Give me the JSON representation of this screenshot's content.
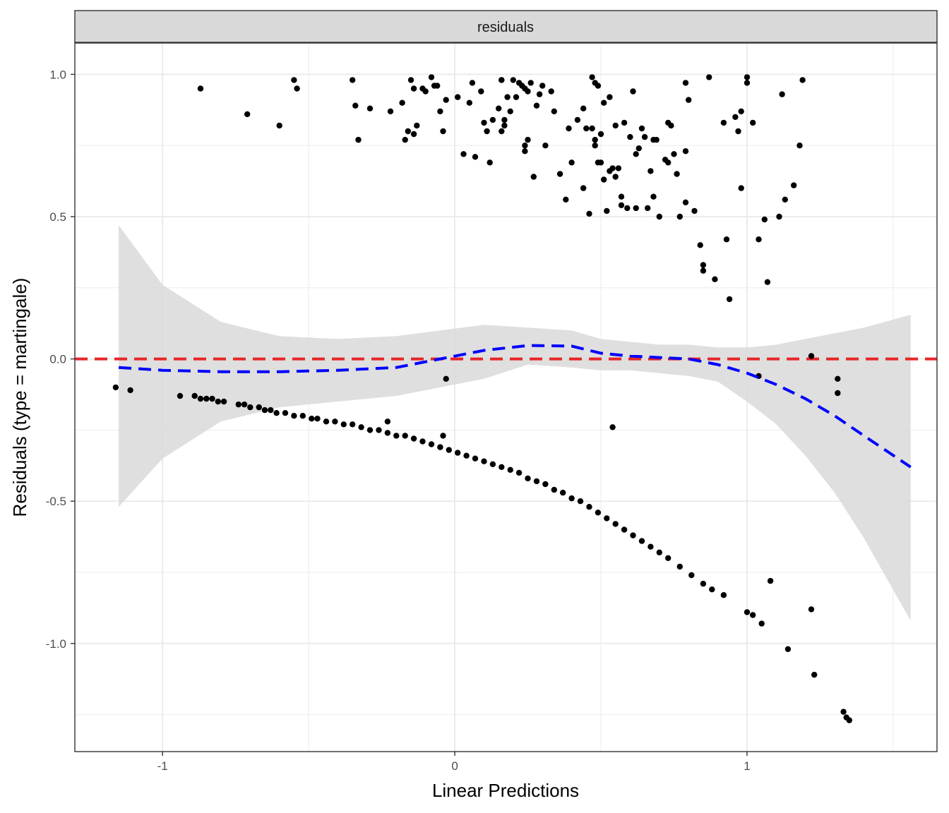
{
  "chart_data": {
    "type": "scatter",
    "facet_label": "residuals",
    "xlabel": "Linear Predictions",
    "ylabel": "Residuals (type = martingale)",
    "xlim": [
      -1.3,
      1.65
    ],
    "ylim": [
      -1.38,
      1.11
    ],
    "x_ticks": [
      -1,
      0,
      1
    ],
    "x_tick_labels": [
      "-1",
      "0",
      "1"
    ],
    "y_ticks": [
      -1.0,
      -0.5,
      0.0,
      0.5,
      1.0
    ],
    "y_tick_labels": [
      "-1.0",
      "-0.5",
      "0.0",
      "0.5",
      "1.0"
    ],
    "grid": true,
    "reference_line": {
      "y": 0,
      "color": "#e8262a",
      "style": "dashed"
    },
    "smooth": {
      "color": "#0000ff",
      "style": "dashed",
      "band_color": "#d9d9d9",
      "x": [
        -1.15,
        -1.0,
        -0.8,
        -0.6,
        -0.4,
        -0.2,
        -0.05,
        0.1,
        0.25,
        0.4,
        0.5,
        0.6,
        0.7,
        0.8,
        0.9,
        1.0,
        1.1,
        1.2,
        1.3,
        1.4,
        1.56
      ],
      "y": [
        -0.03,
        -0.04,
        -0.045,
        -0.045,
        -0.04,
        -0.03,
        0.0,
        0.03,
        0.047,
        0.045,
        0.02,
        0.01,
        0.005,
        0.0,
        -0.02,
        -0.05,
        -0.09,
        -0.14,
        -0.2,
        -0.27,
        -0.38
      ],
      "upper": [
        0.47,
        0.26,
        0.13,
        0.08,
        0.07,
        0.08,
        0.1,
        0.12,
        0.11,
        0.1,
        0.07,
        0.06,
        0.05,
        0.05,
        0.04,
        0.04,
        0.05,
        0.07,
        0.09,
        0.11,
        0.155
      ],
      "lower": [
        -0.52,
        -0.35,
        -0.22,
        -0.17,
        -0.15,
        -0.13,
        -0.1,
        -0.07,
        -0.02,
        -0.03,
        -0.04,
        -0.04,
        -0.05,
        -0.06,
        -0.08,
        -0.15,
        -0.23,
        -0.34,
        -0.47,
        -0.63,
        -0.92
      ]
    },
    "points": {
      "color": "#000000",
      "x": [
        -0.87,
        -0.71,
        -0.6,
        -0.55,
        -0.54,
        -0.35,
        -0.34,
        -0.33,
        -0.29,
        -0.22,
        -0.18,
        -0.17,
        -0.16,
        -0.15,
        -0.14,
        -0.14,
        -0.13,
        -0.11,
        -0.1,
        -0.08,
        -0.07,
        -0.06,
        -0.05,
        -0.04,
        -0.03,
        0.01,
        0.03,
        0.05,
        0.06,
        0.07,
        0.09,
        0.1,
        0.11,
        0.12,
        0.13,
        0.15,
        0.16,
        0.16,
        0.16,
        0.17,
        0.17,
        0.18,
        0.19,
        0.2,
        0.21,
        0.22,
        0.23,
        0.24,
        0.24,
        0.24,
        0.25,
        0.25,
        0.26,
        0.27,
        0.28,
        0.29,
        0.3,
        0.31,
        0.33,
        0.34,
        0.36,
        0.38,
        0.39,
        0.4,
        0.42,
        0.44,
        0.44,
        0.45,
        0.46,
        0.47,
        0.47,
        0.48,
        0.48,
        0.48,
        0.49,
        0.49,
        0.5,
        0.5,
        0.51,
        0.51,
        0.52,
        0.53,
        0.53,
        0.54,
        0.55,
        0.55,
        0.56,
        0.57,
        0.57,
        0.58,
        0.59,
        0.6,
        0.61,
        0.62,
        0.62,
        0.63,
        0.64,
        0.65,
        0.66,
        0.67,
        0.68,
        0.68,
        0.69,
        0.7,
        0.72,
        0.73,
        0.73,
        0.74,
        0.75,
        0.76,
        0.77,
        0.79,
        0.79,
        0.79,
        0.8,
        0.82,
        0.84,
        0.85,
        0.85,
        0.87,
        0.89,
        0.92,
        0.93,
        0.94,
        0.96,
        0.97,
        0.98,
        0.98,
        1.0,
        1.0,
        1.02,
        1.04,
        1.06,
        1.07,
        1.11,
        1.12,
        1.13,
        1.16,
        1.18,
        1.19,
        1.22
      ],
      "y": [
        0.95,
        0.86,
        0.82,
        0.98,
        0.95,
        0.98,
        0.89,
        0.77,
        0.88,
        0.87,
        0.9,
        0.77,
        0.8,
        0.98,
        0.95,
        0.79,
        0.82,
        0.95,
        0.94,
        0.99,
        0.96,
        0.96,
        0.87,
        0.8,
        0.91,
        0.92,
        0.72,
        0.9,
        0.97,
        0.71,
        0.94,
        0.83,
        0.8,
        0.69,
        0.84,
        0.88,
        0.98,
        0.8,
        0.98,
        0.82,
        0.84,
        0.92,
        0.87,
        0.98,
        0.92,
        0.97,
        0.96,
        0.75,
        0.73,
        0.95,
        0.77,
        0.94,
        0.97,
        0.64,
        0.89,
        0.93,
        0.96,
        0.75,
        0.94,
        0.87,
        0.65,
        0.56,
        0.81,
        0.69,
        0.84,
        0.88,
        0.6,
        0.81,
        0.51,
        0.99,
        0.81,
        0.77,
        0.75,
        0.97,
        0.96,
        0.69,
        0.79,
        0.69,
        0.9,
        0.63,
        0.52,
        0.66,
        0.92,
        0.67,
        0.82,
        0.64,
        0.67,
        0.57,
        0.54,
        0.83,
        0.53,
        0.78,
        0.94,
        0.72,
        0.53,
        0.74,
        0.81,
        0.78,
        0.53,
        0.66,
        0.77,
        0.57,
        0.77,
        0.5,
        0.7,
        0.83,
        0.69,
        0.82,
        0.72,
        0.65,
        0.5,
        0.97,
        0.73,
        0.55,
        0.91,
        0.52,
        0.4,
        0.33,
        0.31,
        0.99,
        0.28,
        0.83,
        0.42,
        0.21,
        0.85,
        0.8,
        0.87,
        0.6,
        0.97,
        0.99,
        0.83,
        0.42,
        0.49,
        0.27,
        0.5,
        0.93,
        0.56,
        0.61,
        0.75,
        0.98,
        0.01
      ],
      "neg": [
        [
          -1.16,
          -0.1
        ],
        [
          -1.11,
          -0.11
        ],
        [
          -0.94,
          -0.13
        ],
        [
          -0.89,
          -0.13
        ],
        [
          -0.87,
          -0.14
        ],
        [
          -0.85,
          -0.14
        ],
        [
          -0.83,
          -0.14
        ],
        [
          -0.81,
          -0.15
        ],
        [
          -0.79,
          -0.15
        ],
        [
          -0.74,
          -0.16
        ],
        [
          -0.72,
          -0.16
        ],
        [
          -0.7,
          -0.17
        ],
        [
          -0.67,
          -0.17
        ],
        [
          -0.65,
          -0.18
        ],
        [
          -0.63,
          -0.18
        ],
        [
          -0.61,
          -0.19
        ],
        [
          -0.58,
          -0.19
        ],
        [
          -0.55,
          -0.2
        ],
        [
          -0.52,
          -0.2
        ],
        [
          -0.49,
          -0.21
        ],
        [
          -0.47,
          -0.21
        ],
        [
          -0.44,
          -0.22
        ],
        [
          -0.41,
          -0.22
        ],
        [
          -0.38,
          -0.23
        ],
        [
          -0.35,
          -0.23
        ],
        [
          -0.32,
          -0.24
        ],
        [
          -0.29,
          -0.25
        ],
        [
          -0.26,
          -0.25
        ],
        [
          -0.23,
          -0.26
        ],
        [
          -0.2,
          -0.27
        ],
        [
          -0.17,
          -0.27
        ],
        [
          -0.14,
          -0.28
        ],
        [
          -0.11,
          -0.29
        ],
        [
          -0.08,
          -0.3
        ],
        [
          -0.05,
          -0.31
        ],
        [
          -0.02,
          -0.32
        ],
        [
          0.01,
          -0.33
        ],
        [
          0.04,
          -0.34
        ],
        [
          0.07,
          -0.35
        ],
        [
          0.1,
          -0.36
        ],
        [
          0.13,
          -0.37
        ],
        [
          0.16,
          -0.38
        ],
        [
          0.19,
          -0.39
        ],
        [
          0.22,
          -0.4
        ],
        [
          0.25,
          -0.42
        ],
        [
          0.28,
          -0.43
        ],
        [
          0.31,
          -0.44
        ],
        [
          0.34,
          -0.46
        ],
        [
          0.37,
          -0.47
        ],
        [
          0.4,
          -0.49
        ],
        [
          0.43,
          -0.5
        ],
        [
          0.46,
          -0.52
        ],
        [
          0.49,
          -0.54
        ],
        [
          0.52,
          -0.56
        ],
        [
          0.55,
          -0.58
        ],
        [
          0.58,
          -0.6
        ],
        [
          0.61,
          -0.62
        ],
        [
          0.64,
          -0.64
        ],
        [
          0.67,
          -0.66
        ],
        [
          0.7,
          -0.68
        ],
        [
          0.73,
          -0.7
        ],
        [
          0.77,
          -0.73
        ],
        [
          0.81,
          -0.76
        ],
        [
          0.85,
          -0.79
        ],
        [
          0.88,
          -0.81
        ],
        [
          0.92,
          -0.83
        ],
        [
          1.0,
          -0.89
        ],
        [
          1.02,
          -0.9
        ],
        [
          1.05,
          -0.93
        ],
        [
          -0.23,
          -0.22
        ],
        [
          -0.04,
          -0.27
        ],
        [
          -0.03,
          -0.07
        ],
        [
          0.54,
          -0.24
        ],
        [
          1.04,
          -0.06
        ],
        [
          1.08,
          -0.78
        ],
        [
          1.14,
          -1.02
        ],
        [
          1.22,
          -0.88
        ],
        [
          1.23,
          -1.11
        ],
        [
          1.31,
          -0.07
        ],
        [
          1.31,
          -0.12
        ],
        [
          1.33,
          -1.24
        ],
        [
          1.34,
          -1.26
        ],
        [
          1.35,
          -1.27
        ]
      ]
    }
  }
}
